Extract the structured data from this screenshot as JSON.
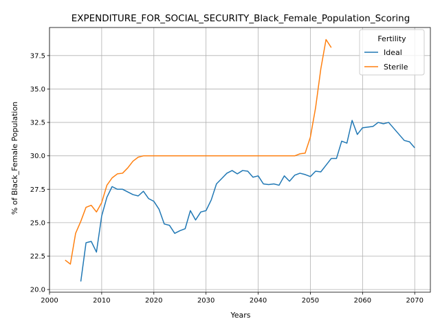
{
  "chart_data": {
    "type": "line",
    "title": "EXPENDITURE_FOR_SOCIAL_SECURITY_Black_Female_Population_Scoring",
    "xlabel": "Years",
    "ylabel": "% of Black_Female Population",
    "xlim": [
      2000,
      2073
    ],
    "ylim": [
      19.8,
      39.6
    ],
    "xticks": [
      2000,
      2010,
      2020,
      2030,
      2040,
      2050,
      2060,
      2070
    ],
    "yticks": [
      20.0,
      22.5,
      25.0,
      27.5,
      30.0,
      32.5,
      35.0,
      37.5
    ],
    "grid": true,
    "legend": {
      "title": "Fertility",
      "placement": "top-right",
      "entries": [
        "Ideal",
        "Sterile"
      ]
    },
    "series": [
      {
        "name": "Ideal",
        "color": "#1f77b4",
        "x": [
          2006,
          2007,
          2008,
          2009,
          2010,
          2011,
          2012,
          2013,
          2014,
          2015,
          2016,
          2017,
          2018,
          2019,
          2020,
          2021,
          2022,
          2023,
          2024,
          2025,
          2026,
          2027,
          2028,
          2029,
          2030,
          2031,
          2032,
          2033,
          2034,
          2035,
          2036,
          2037,
          2038,
          2039,
          2040,
          2041,
          2042,
          2043,
          2044,
          2045,
          2046,
          2047,
          2048,
          2049,
          2050,
          2051,
          2052,
          2053,
          2054,
          2055,
          2056,
          2057,
          2058,
          2059,
          2060,
          2061,
          2062,
          2063,
          2064,
          2065,
          2066,
          2067,
          2068,
          2069,
          2070
        ],
        "y": [
          20.6,
          23.5,
          23.6,
          22.8,
          25.5,
          26.9,
          27.7,
          27.5,
          27.5,
          27.3,
          27.1,
          27.0,
          27.35,
          26.8,
          26.6,
          26.0,
          24.9,
          24.8,
          24.2,
          24.4,
          24.55,
          25.9,
          25.2,
          25.8,
          25.9,
          26.7,
          27.9,
          28.3,
          28.7,
          28.9,
          28.65,
          28.9,
          28.85,
          28.4,
          28.5,
          27.9,
          27.85,
          27.9,
          27.8,
          28.5,
          28.1,
          28.55,
          28.7,
          28.6,
          28.45,
          28.85,
          28.8,
          29.3,
          29.8,
          29.8,
          31.1,
          30.95,
          32.65,
          31.6,
          32.1,
          32.15,
          32.2,
          32.5,
          32.4,
          32.5,
          32.05,
          31.6,
          31.15,
          31.05,
          30.6
        ]
      },
      {
        "name": "Sterile",
        "color": "#ff7f0e",
        "x": [
          2003,
          2004,
          2005,
          2006,
          2007,
          2008,
          2009,
          2010,
          2011,
          2012,
          2013,
          2014,
          2015,
          2016,
          2017,
          2018,
          2019,
          2020,
          2021,
          2022,
          2023,
          2024,
          2025,
          2026,
          2027,
          2028,
          2029,
          2030,
          2031,
          2032,
          2033,
          2034,
          2035,
          2036,
          2037,
          2038,
          2039,
          2040,
          2041,
          2042,
          2043,
          2044,
          2045,
          2046,
          2047,
          2048,
          2049,
          2050,
          2051,
          2052,
          2053,
          2054
        ],
        "y": [
          22.2,
          21.9,
          24.2,
          25.1,
          26.15,
          26.3,
          25.8,
          26.5,
          27.8,
          28.35,
          28.65,
          28.7,
          29.1,
          29.6,
          29.9,
          30.0,
          30.0,
          30.0,
          30.0,
          30.0,
          30.0,
          30.0,
          30.0,
          30.0,
          30.0,
          30.0,
          30.0,
          30.0,
          30.0,
          30.0,
          30.0,
          30.0,
          30.0,
          30.0,
          30.0,
          30.0,
          30.0,
          30.0,
          30.0,
          30.0,
          30.0,
          30.0,
          30.0,
          30.0,
          30.0,
          30.15,
          30.2,
          31.4,
          33.6,
          36.5,
          38.7,
          38.1
        ]
      }
    ]
  }
}
